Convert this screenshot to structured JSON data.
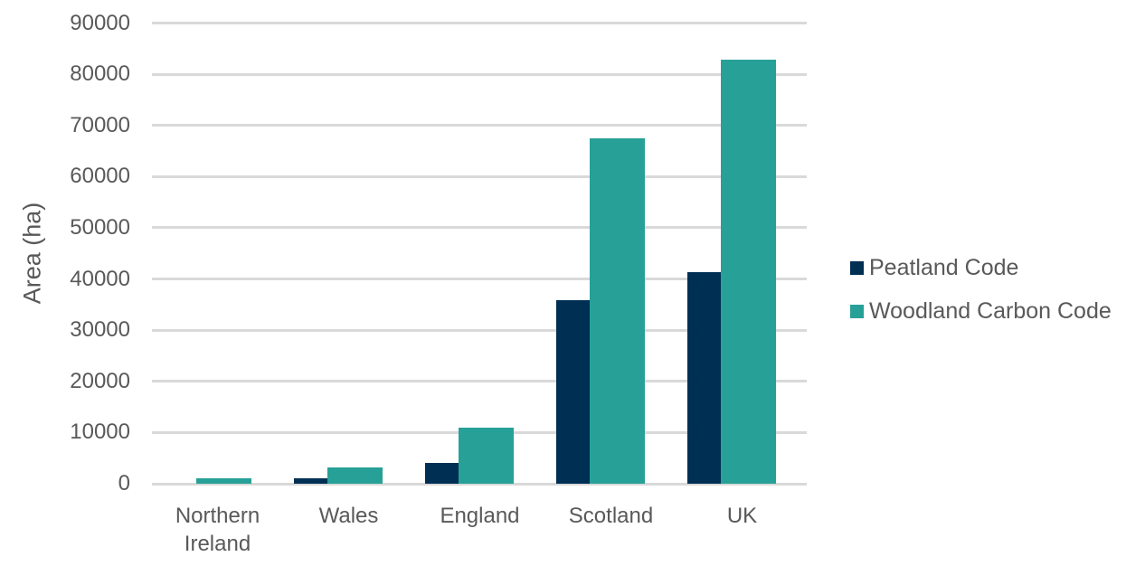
{
  "chart_data": {
    "type": "bar",
    "title": "",
    "xlabel": "",
    "ylabel": "Area (ha)",
    "ylim": [
      0,
      90000
    ],
    "yticks": [
      0,
      10000,
      20000,
      30000,
      40000,
      50000,
      60000,
      70000,
      80000,
      90000
    ],
    "ytick_labels": [
      "0",
      "10000",
      "20000",
      "30000",
      "40000",
      "50000",
      "60000",
      "70000",
      "80000",
      "90000"
    ],
    "grid": true,
    "legend_position": "right",
    "categories": [
      "Northern\nIreland",
      "Wales",
      "England",
      "Scotland",
      "UK"
    ],
    "series": [
      {
        "name": "Peatland Code",
        "color": "#002f54",
        "values": [
          0,
          1100,
          4000,
          35800,
          41300
        ]
      },
      {
        "name": "Woodland Carbon Code",
        "color": "#27a197",
        "values": [
          1000,
          3100,
          10900,
          67500,
          82800
        ]
      }
    ]
  }
}
